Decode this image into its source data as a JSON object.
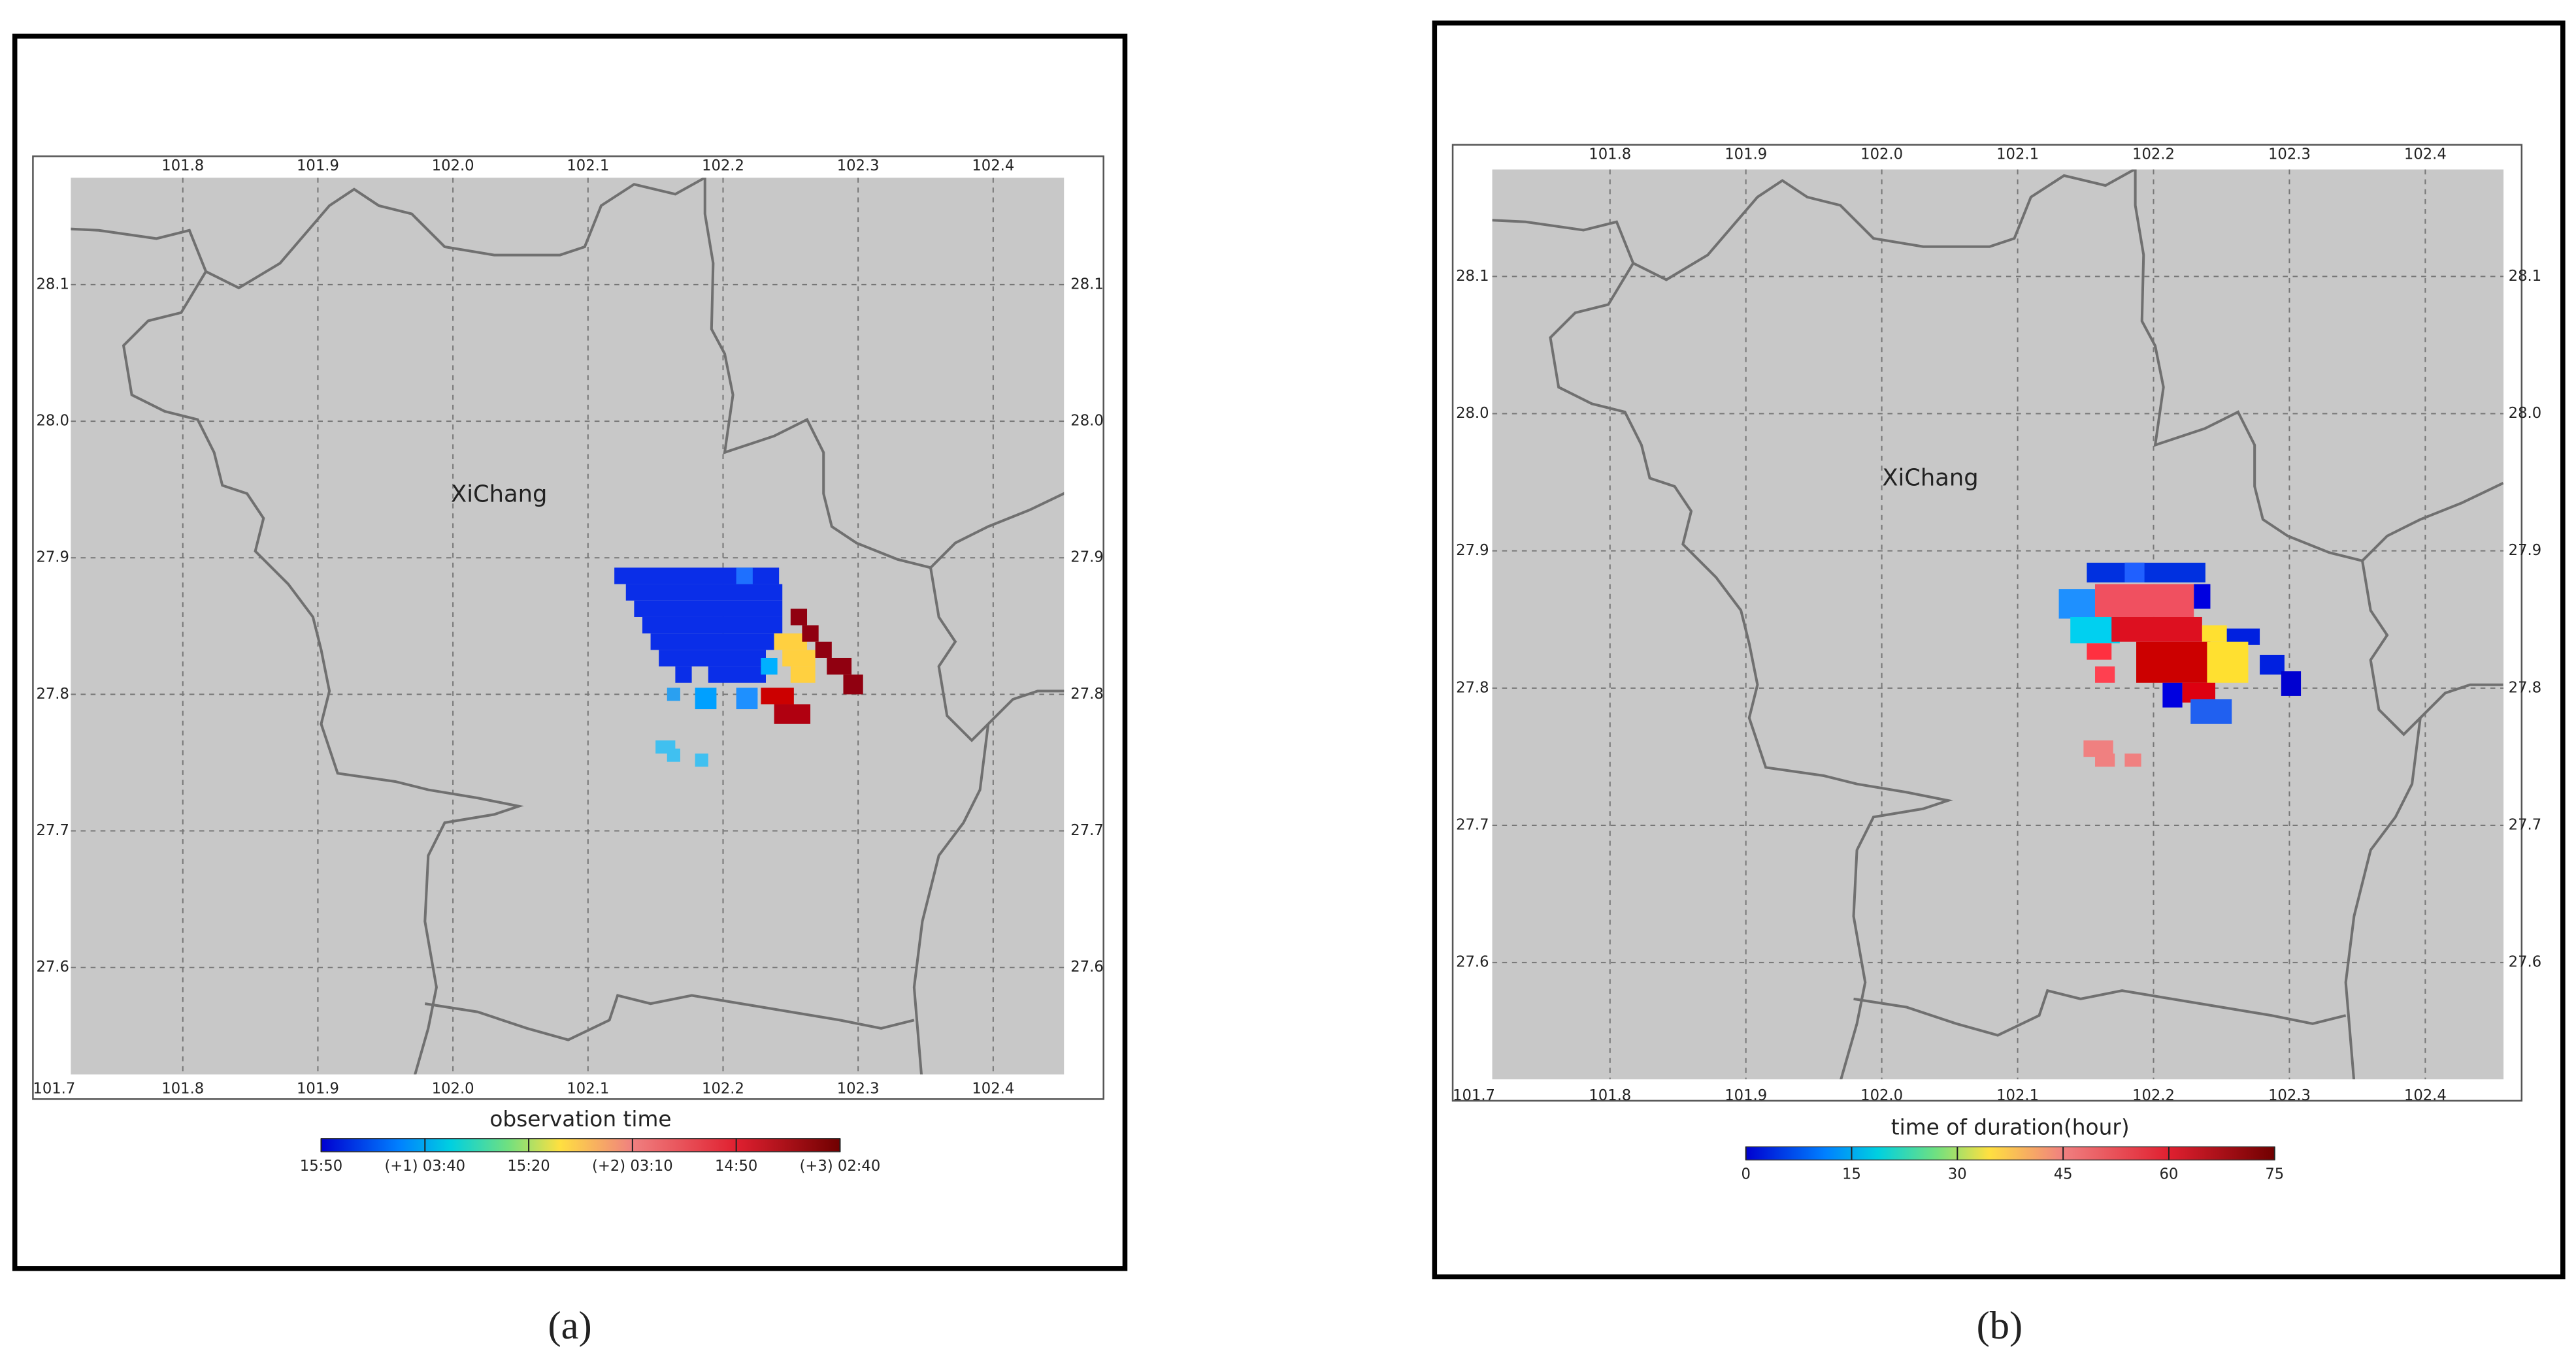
{
  "panels": [
    {
      "label": "(a)",
      "place": "XiChang",
      "lon_top": [
        "101.8",
        "101.9",
        "102.0",
        "102.1",
        "102.2",
        "102.3",
        "102.4"
      ],
      "lon_bottom": [
        "101.7",
        "101.8",
        "101.9",
        "102.0",
        "102.1",
        "102.2",
        "102.3",
        "102.4"
      ],
      "lat_left": [
        "28.1",
        "28.0",
        "27.9",
        "27.8",
        "27.7",
        "27.6"
      ],
      "lat_right": [
        "28.1",
        "28.0",
        "27.9",
        "27.8",
        "27.7",
        "27.6"
      ],
      "colorbar": {
        "title": "observation time",
        "ticks": [
          "15:50",
          "(+1) 03:40",
          "15:20",
          "(+2) 03:10",
          "14:50",
          "(+3) 02:40"
        ]
      }
    },
    {
      "label": "(b)",
      "place": "XiChang",
      "lon_top": [
        "101.8",
        "101.9",
        "102.0",
        "102.1",
        "102.2",
        "102.3",
        "102.4"
      ],
      "lon_bottom": [
        "101.7",
        "101.8",
        "101.9",
        "102.0",
        "102.1",
        "102.2",
        "102.3",
        "102.4"
      ],
      "lat_left": [
        "28.1",
        "28.0",
        "27.9",
        "27.8",
        "27.7",
        "27.6"
      ],
      "lat_right": [
        "28.1",
        "28.0",
        "27.9",
        "27.8",
        "27.7",
        "27.6"
      ],
      "colorbar": {
        "title": "time of duration(hour)",
        "ticks": [
          "0",
          "15",
          "30",
          "45",
          "60",
          "75"
        ]
      }
    }
  ]
}
